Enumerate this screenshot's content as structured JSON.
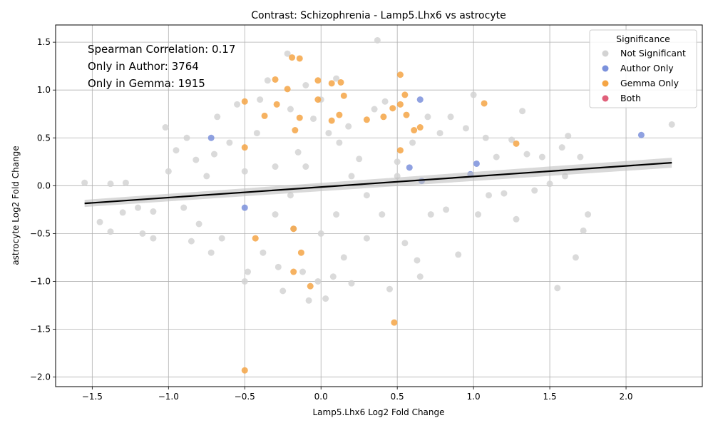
{
  "chart_data": {
    "type": "scatter",
    "title": "Contrast: Schizophrenia - Lamp5.Lhx6 vs astrocyte",
    "xlabel": "Lamp5.Lhx6 Log2 Fold Change",
    "ylabel": "astrocyte Log2 Fold Change",
    "xlim": [
      -1.74,
      2.5
    ],
    "ylim": [
      -2.1,
      1.68
    ],
    "xticks": [
      -1.5,
      -1.0,
      -0.5,
      0.0,
      0.5,
      1.0,
      1.5,
      2.0
    ],
    "xtick_labels": [
      "−1.5",
      "−1.0",
      "−0.5",
      "0.0",
      "0.5",
      "1.0",
      "1.5",
      "2.0"
    ],
    "yticks": [
      -2.0,
      -1.5,
      -1.0,
      -0.5,
      0.0,
      0.5,
      1.0,
      1.5
    ],
    "ytick_labels": [
      "−2.0",
      "−1.5",
      "−1.0",
      "−0.5",
      "0.0",
      "0.5",
      "1.0",
      "1.5"
    ],
    "grid": true,
    "legend_placement": "top-right",
    "legend_title": "Significance",
    "annotations": [
      "Spearman Correlation: 0.17",
      "Only in Author: 3764",
      "Only in Gemma: 1915"
    ],
    "regression_line": {
      "x": [
        -1.55,
        2.3
      ],
      "y": [
        -0.185,
        0.24
      ],
      "color": "#000000"
    },
    "series": [
      {
        "name": "Not Significant",
        "color": "#d3d3d3",
        "points": [
          [
            -1.55,
            0.03
          ],
          [
            -1.45,
            -0.38
          ],
          [
            -1.38,
            -0.48
          ],
          [
            -1.38,
            0.02
          ],
          [
            -1.3,
            -0.28
          ],
          [
            -1.28,
            0.03
          ],
          [
            -1.2,
            -0.23
          ],
          [
            -1.17,
            -0.5
          ],
          [
            -1.1,
            -0.55
          ],
          [
            -1.1,
            -0.27
          ],
          [
            -1.02,
            0.61
          ],
          [
            -1.0,
            0.15
          ],
          [
            -0.95,
            0.37
          ],
          [
            -0.9,
            -0.23
          ],
          [
            -0.88,
            0.5
          ],
          [
            -0.85,
            -0.58
          ],
          [
            -0.82,
            0.27
          ],
          [
            -0.8,
            -0.4
          ],
          [
            -0.75,
            0.1
          ],
          [
            -0.72,
            -0.7
          ],
          [
            -0.7,
            0.33
          ],
          [
            -0.68,
            0.72
          ],
          [
            -0.65,
            -0.55
          ],
          [
            -0.6,
            0.45
          ],
          [
            -0.55,
            0.85
          ],
          [
            -0.5,
            -1.0
          ],
          [
            -0.48,
            -0.9
          ],
          [
            -0.42,
            0.55
          ],
          [
            -0.4,
            0.9
          ],
          [
            -0.38,
            -0.7
          ],
          [
            -0.35,
            1.1
          ],
          [
            -0.3,
            0.2
          ],
          [
            -0.28,
            -0.85
          ],
          [
            -0.25,
            -1.1
          ],
          [
            -0.22,
            1.38
          ],
          [
            -0.2,
            0.8
          ],
          [
            -0.18,
            -0.45
          ],
          [
            -0.15,
            0.35
          ],
          [
            -0.12,
            -0.9
          ],
          [
            -0.1,
            1.05
          ],
          [
            -0.08,
            -1.2
          ],
          [
            -0.05,
            0.7
          ],
          [
            -0.02,
            -1.0
          ],
          [
            0.0,
            0.9
          ],
          [
            0.03,
            -1.18
          ],
          [
            0.05,
            0.55
          ],
          [
            0.08,
            -0.95
          ],
          [
            0.1,
            1.12
          ],
          [
            0.12,
            0.45
          ],
          [
            0.15,
            -0.75
          ],
          [
            0.18,
            0.62
          ],
          [
            0.2,
            -1.02
          ],
          [
            0.25,
            0.28
          ],
          [
            0.3,
            -0.55
          ],
          [
            0.35,
            0.8
          ],
          [
            0.37,
            1.52
          ],
          [
            0.4,
            -0.3
          ],
          [
            0.42,
            0.88
          ],
          [
            0.45,
            -1.08
          ],
          [
            0.5,
            0.25
          ],
          [
            0.55,
            -0.6
          ],
          [
            0.6,
            0.45
          ],
          [
            0.63,
            -0.78
          ],
          [
            0.65,
            -0.95
          ],
          [
            0.7,
            0.72
          ],
          [
            0.72,
            -0.3
          ],
          [
            0.78,
            0.55
          ],
          [
            0.82,
            -0.25
          ],
          [
            0.85,
            0.72
          ],
          [
            0.9,
            -0.72
          ],
          [
            0.95,
            0.6
          ],
          [
            1.0,
            0.95
          ],
          [
            1.03,
            -0.3
          ],
          [
            1.08,
            0.5
          ],
          [
            1.1,
            -0.1
          ],
          [
            1.15,
            0.3
          ],
          [
            1.2,
            -0.08
          ],
          [
            1.25,
            0.48
          ],
          [
            1.28,
            -0.35
          ],
          [
            1.32,
            0.78
          ],
          [
            1.35,
            0.33
          ],
          [
            1.4,
            -0.05
          ],
          [
            1.45,
            0.3
          ],
          [
            1.5,
            0.02
          ],
          [
            1.55,
            -1.07
          ],
          [
            1.58,
            0.4
          ],
          [
            1.6,
            0.1
          ],
          [
            1.62,
            0.52
          ],
          [
            1.67,
            -0.75
          ],
          [
            1.7,
            0.3
          ],
          [
            1.72,
            -0.47
          ],
          [
            1.75,
            -0.3
          ],
          [
            2.3,
            0.64
          ],
          [
            -0.3,
            -0.3
          ],
          [
            0.2,
            0.1
          ],
          [
            -0.1,
            0.2
          ],
          [
            0.3,
            -0.1
          ],
          [
            0.1,
            -0.3
          ],
          [
            -0.2,
            -0.1
          ],
          [
            0.5,
            0.1
          ],
          [
            -0.5,
            0.15
          ],
          [
            0.0,
            -0.5
          ]
        ]
      },
      {
        "name": "Author Only",
        "color": "#7b91dc",
        "points": [
          [
            -0.72,
            0.5
          ],
          [
            0.65,
            0.9
          ],
          [
            2.1,
            0.53
          ],
          [
            1.02,
            0.23
          ],
          [
            0.98,
            0.12
          ],
          [
            0.58,
            0.19
          ],
          [
            0.66,
            0.05
          ],
          [
            -0.5,
            -0.23
          ]
        ]
      },
      {
        "name": "Gemma Only",
        "color": "#f5a545",
        "points": [
          [
            -0.5,
            0.88
          ],
          [
            -0.3,
            1.11
          ],
          [
            -0.22,
            1.01
          ],
          [
            -0.19,
            1.34
          ],
          [
            -0.14,
            1.33
          ],
          [
            -0.02,
            1.1
          ],
          [
            0.07,
            1.07
          ],
          [
            0.13,
            1.08
          ],
          [
            0.52,
            1.16
          ],
          [
            -0.37,
            0.73
          ],
          [
            -0.29,
            0.85
          ],
          [
            -0.02,
            0.9
          ],
          [
            0.15,
            0.94
          ],
          [
            0.55,
            0.95
          ],
          [
            0.52,
            0.85
          ],
          [
            0.47,
            0.81
          ],
          [
            0.41,
            0.72
          ],
          [
            0.56,
            0.74
          ],
          [
            1.07,
            0.86
          ],
          [
            0.65,
            0.61
          ],
          [
            0.61,
            0.58
          ],
          [
            0.3,
            0.69
          ],
          [
            0.07,
            0.68
          ],
          [
            0.12,
            0.74
          ],
          [
            -0.14,
            0.71
          ],
          [
            -0.17,
            0.58
          ],
          [
            0.52,
            0.37
          ],
          [
            1.28,
            0.44
          ],
          [
            -0.5,
            0.4
          ],
          [
            -0.18,
            -0.45
          ],
          [
            -0.43,
            -0.55
          ],
          [
            -0.13,
            -0.7
          ],
          [
            -0.18,
            -0.9
          ],
          [
            -0.07,
            -1.05
          ],
          [
            0.48,
            -1.43
          ],
          [
            -0.5,
            -1.93
          ]
        ]
      },
      {
        "name": "Both",
        "color": "#e0607a",
        "points": []
      }
    ]
  }
}
